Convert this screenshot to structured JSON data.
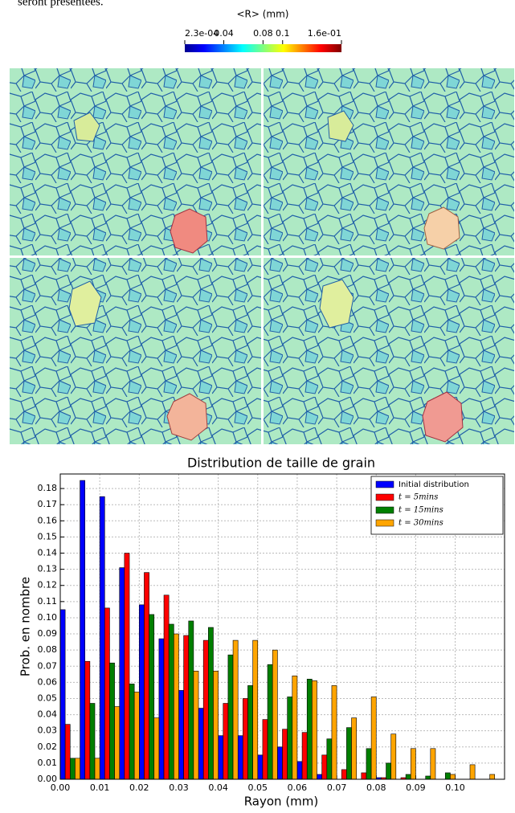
{
  "document": {
    "text_fragment": "seront présentées."
  },
  "colorbar": {
    "title": "<R> (mm)",
    "lim": [
      0.00023,
      0.16
    ],
    "ticks": [
      {
        "value": 0.00023,
        "label": "2.3e-04"
      },
      0.04,
      0.08,
      0.1,
      {
        "value": 0.16,
        "label": "1.6e-01"
      }
    ]
  },
  "chart_data": {
    "type": "histogram",
    "title": "Distribution de taille de grain",
    "x_label": "Rayon (mm)",
    "y_label": "Prob. en nombre",
    "bins": [
      0,
      0.005,
      0.01,
      0.015,
      0.02,
      0.025,
      0.03,
      0.035,
      0.04,
      0.045,
      0.05,
      0.055,
      0.06,
      0.065,
      0.07,
      0.075,
      0.08,
      0.085,
      0.09,
      0.095,
      0.1,
      0.105,
      0.11
    ],
    "series": [
      {
        "name": "Initial distribution",
        "color": "#0000ff",
        "values": [
          0.105,
          0.185,
          0.175,
          0.131,
          0.108,
          0.087,
          0.055,
          0.044,
          0.027,
          0.027,
          0.015,
          0.02,
          0.011,
          0.003,
          0,
          0,
          0.001,
          0,
          0,
          0,
          0,
          0
        ]
      },
      {
        "name": "t = 5mins",
        "color": "#ff0000",
        "values": [
          0.034,
          0.073,
          0.106,
          0.14,
          0.128,
          0.114,
          0.089,
          0.086,
          0.047,
          0.05,
          0.037,
          0.031,
          0.029,
          0.015,
          0.006,
          0.004,
          0.001,
          0.001,
          0,
          0,
          0,
          0
        ]
      },
      {
        "name": "t = 15mins",
        "color": "#007f00",
        "values": [
          0.013,
          0.047,
          0.072,
          0.059,
          0.102,
          0.096,
          0.098,
          0.094,
          0.077,
          0.058,
          0.071,
          0.051,
          0.062,
          0.025,
          0.032,
          0.019,
          0.01,
          0.003,
          0.002,
          0.004,
          0,
          0
        ]
      },
      {
        "name": "t = 30mins",
        "color": "#ffa500",
        "values": [
          0.013,
          0.013,
          0.045,
          0.054,
          0.038,
          0.09,
          0.067,
          0.067,
          0.086,
          0.086,
          0.08,
          0.064,
          0.061,
          0.058,
          0.038,
          0.051,
          0.028,
          0.019,
          0.019,
          0.003,
          0.009,
          0.003
        ]
      }
    ],
    "xlim": [
      0,
      0.1125
    ],
    "ylim": [
      0,
      0.189
    ],
    "xticks": [
      {
        "value": 0,
        "label": "0.00"
      },
      {
        "value": 0.01,
        "label": "0.01"
      },
      {
        "value": 0.02,
        "label": "0.02"
      },
      {
        "value": 0.03,
        "label": "0.03"
      },
      {
        "value": 0.04,
        "label": "0.04"
      },
      {
        "value": 0.05,
        "label": "0.05"
      },
      {
        "value": 0.06,
        "label": "0.06"
      },
      {
        "value": 0.07,
        "label": "0.07"
      },
      {
        "value": 0.08,
        "label": "0.08"
      },
      {
        "value": 0.09,
        "label": "0.09"
      },
      {
        "value": 0.1,
        "label": "0.10"
      }
    ],
    "yticks": [
      {
        "value": 0,
        "label": "0.00"
      },
      {
        "value": 0.01,
        "label": "0.01"
      },
      {
        "value": 0.02,
        "label": "0.02"
      },
      {
        "value": 0.03,
        "label": "0.03"
      },
      {
        "value": 0.04,
        "label": "0.04"
      },
      {
        "value": 0.05,
        "label": "0.05"
      },
      {
        "value": 0.06,
        "label": "0.06"
      },
      {
        "value": 0.07,
        "label": "0.07"
      },
      {
        "value": 0.08,
        "label": "0.08"
      },
      {
        "value": 0.09,
        "label": "0.09"
      },
      {
        "value": 0.1,
        "label": "0.10"
      },
      {
        "value": 0.11,
        "label": "0.11"
      },
      {
        "value": 0.12,
        "label": "0.12"
      },
      {
        "value": 0.13,
        "label": "0.13"
      },
      {
        "value": 0.14,
        "label": "0.14"
      },
      {
        "value": 0.15,
        "label": "0.15"
      },
      {
        "value": 0.16,
        "label": "0.16"
      },
      {
        "value": 0.17,
        "label": "0.17"
      },
      {
        "value": 0.18,
        "label": "0.18"
      }
    ],
    "grid": true,
    "legend": "upper right"
  }
}
